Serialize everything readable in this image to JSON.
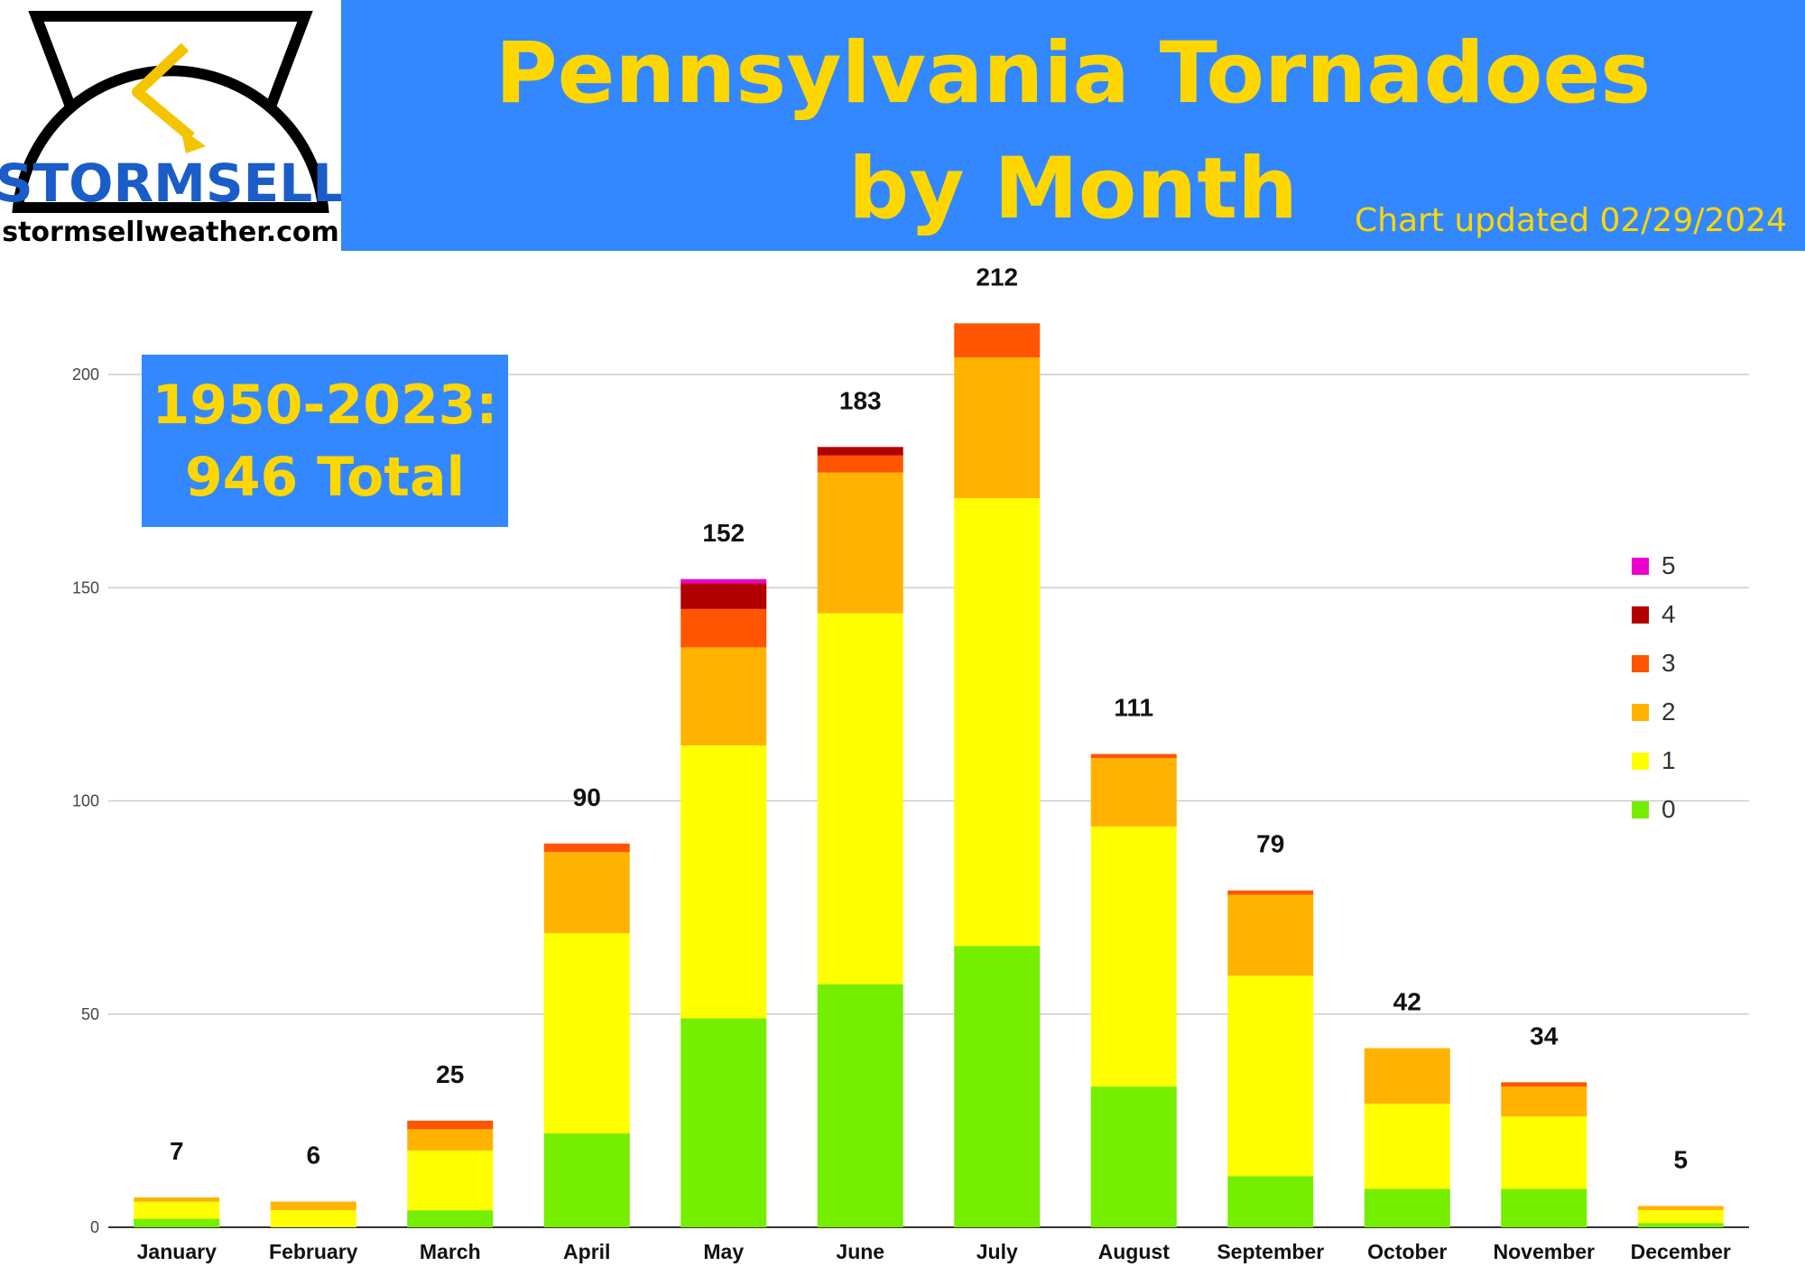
{
  "header": {
    "title_line1": "Pennsylvania Tornadoes",
    "title_line2": "by Month",
    "updated": "Chart updated 02/29/2024"
  },
  "logo": {
    "brand": "STORMSELL",
    "url": "stormsellweather.com"
  },
  "summary": {
    "line1": "1950-2023:",
    "line2": "946 Total"
  },
  "colors": {
    "header_bg": "#3388ff",
    "title_text": "#ffd700"
  },
  "chart_data": {
    "type": "bar",
    "stacked": true,
    "categories": [
      "January",
      "February",
      "March",
      "April",
      "May",
      "June",
      "July",
      "August",
      "September",
      "October",
      "November",
      "December"
    ],
    "totals": [
      7,
      6,
      25,
      90,
      152,
      183,
      212,
      111,
      79,
      42,
      34,
      5
    ],
    "series": [
      {
        "name": "0",
        "color": "#76ee00",
        "values": [
          2,
          0,
          4,
          22,
          49,
          57,
          66,
          33,
          12,
          9,
          9,
          1
        ]
      },
      {
        "name": "1",
        "color": "#ffff00",
        "values": [
          4,
          4,
          14,
          47,
          64,
          87,
          105,
          61,
          47,
          20,
          17,
          3
        ]
      },
      {
        "name": "2",
        "color": "#ffb300",
        "values": [
          1,
          2,
          5,
          19,
          23,
          33,
          33,
          16,
          19,
          13,
          7,
          1
        ]
      },
      {
        "name": "3",
        "color": "#ff5500",
        "values": [
          0,
          0,
          2,
          2,
          9,
          4,
          8,
          1,
          1,
          0,
          1,
          0
        ]
      },
      {
        "name": "4",
        "color": "#b20000",
        "values": [
          0,
          0,
          0,
          0,
          6,
          2,
          0,
          0,
          0,
          0,
          0,
          0
        ]
      },
      {
        "name": "5",
        "color": "#ee00cc",
        "values": [
          0,
          0,
          0,
          0,
          1,
          0,
          0,
          0,
          0,
          0,
          0,
          0
        ]
      }
    ],
    "yticks": [
      0,
      50,
      100,
      150,
      200
    ],
    "ylim": [
      0,
      212
    ],
    "grid": true,
    "legend_position": "right"
  }
}
